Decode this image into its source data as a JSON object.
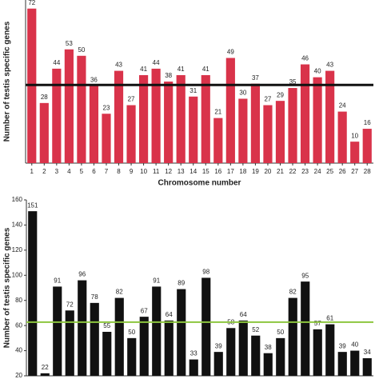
{
  "chart_data": [
    {
      "type": "bar",
      "ylabel": "Number of testis specific genes",
      "xlabel": "Chromosome number",
      "categories": [
        "1",
        "2",
        "3",
        "4",
        "5",
        "6",
        "7",
        "8",
        "9",
        "10",
        "11",
        "12",
        "13",
        "14",
        "15",
        "16",
        "17",
        "18",
        "19",
        "20",
        "21",
        "22",
        "23",
        "24",
        "25",
        "26",
        "27",
        "28"
      ],
      "values": [
        72,
        28,
        44,
        53,
        50,
        36,
        23,
        43,
        27,
        41,
        44,
        38,
        41,
        31,
        41,
        21,
        49,
        30,
        37,
        27,
        29,
        35,
        46,
        40,
        43,
        24,
        10,
        16
      ],
      "color": "#d9334a",
      "ylim": [
        0,
        76
      ],
      "hline": 36.4,
      "hline_color": "#111111"
    },
    {
      "type": "bar",
      "ylabel": "Number of testis specific genes",
      "values": [
        151,
        22,
        91,
        72,
        96,
        78,
        55,
        82,
        50,
        67,
        91,
        64,
        89,
        33,
        98,
        39,
        58,
        64,
        52,
        38,
        50,
        82,
        95,
        57,
        61,
        39,
        40,
        34
      ],
      "color": "#111111",
      "ylim": [
        20,
        160
      ],
      "yticks": [
        20,
        40,
        60,
        80,
        100,
        120,
        140,
        160
      ],
      "hline": 62.7,
      "hline_color": "#8dc63f"
    }
  ]
}
